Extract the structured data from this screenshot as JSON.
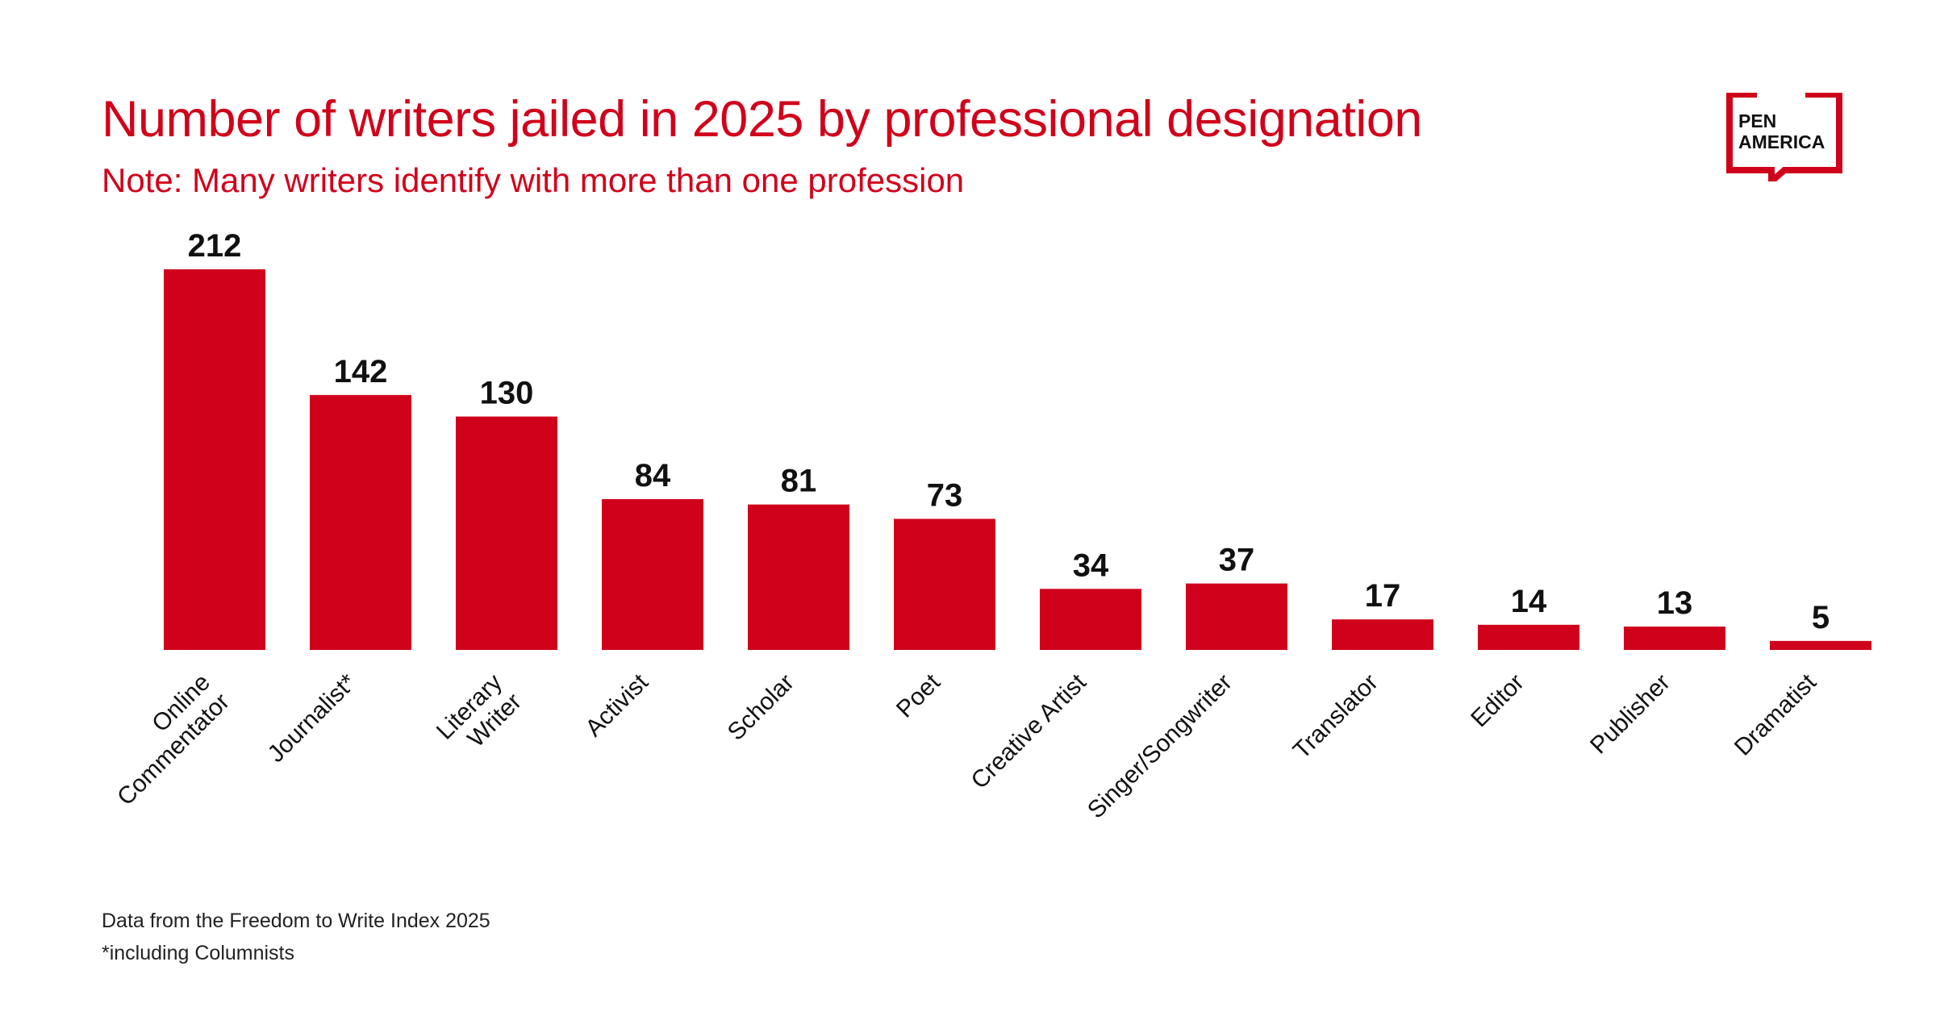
{
  "title": "Number of writers jailed in 2025 by professional designation",
  "subtitle": "Note: Many writers identify with more than one profession",
  "logo": {
    "line1": "PEN",
    "line2": "AMERICA"
  },
  "footnotes": {
    "source": "Data from the Freedom to Write Index 2025",
    "note": "*including Columnists"
  },
  "colors": {
    "bar": "#d0021b",
    "title": "#d0021b",
    "value_label": "#111111"
  },
  "chart_data": {
    "type": "bar",
    "title": "Number of writers jailed in 2025 by professional designation",
    "subtitle": "Note: Many writers identify with more than one profession",
    "xlabel": "",
    "ylabel": "",
    "grid": false,
    "ylim": [
      0,
      212
    ],
    "categories": [
      [
        "Online",
        "Commentator"
      ],
      [
        "Journalist*"
      ],
      [
        "Literary",
        "Writer"
      ],
      [
        "Activist"
      ],
      [
        "Scholar"
      ],
      [
        "Poet"
      ],
      [
        "Creative Artist"
      ],
      [
        "Singer/Songwriter"
      ],
      [
        "Translator"
      ],
      [
        "Editor"
      ],
      [
        "Publisher"
      ],
      [
        "Dramatist"
      ]
    ],
    "values": [
      212,
      142,
      130,
      84,
      81,
      73,
      34,
      37,
      17,
      14,
      13,
      5
    ]
  }
}
